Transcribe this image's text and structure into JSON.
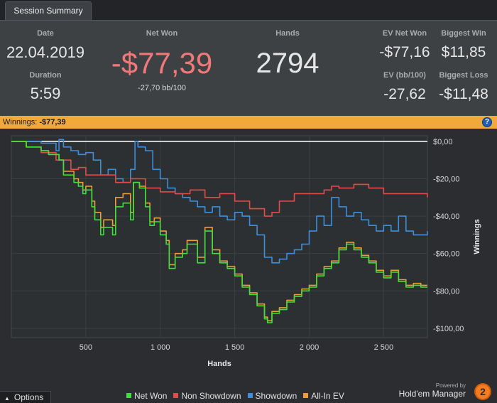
{
  "tab": {
    "label": "Session Summary"
  },
  "summary": {
    "date_label": "Date",
    "date": "22.04.2019",
    "duration_label": "Duration",
    "duration": "5:59",
    "net_won_label": "Net Won",
    "net_won": "-$77,39",
    "net_won_sub": "-27,70 bb/100",
    "hands_label": "Hands",
    "hands": "2794",
    "ev_net_won_label": "EV Net Won",
    "ev_net_won": "-$77,16",
    "ev_bb_label": "EV (bb/100)",
    "ev_bb": "-27,62",
    "biggest_win_label": "Biggest Win",
    "biggest_win": "$11,85",
    "biggest_loss_label": "Biggest Loss",
    "biggest_loss": "-$11,48"
  },
  "winnings_bar": {
    "label": "Winnings:",
    "value": "-$77,39",
    "help": "?"
  },
  "colors": {
    "net_won": "#3ee03a",
    "non_showdown": "#e34b4b",
    "showdown": "#3b8fdd",
    "allin_ev": "#f29a35",
    "accent_red": "#f07878"
  },
  "chart_data": {
    "type": "line",
    "xlabel": "Hands",
    "ylabel": "Winnings",
    "xlim": [
      0,
      2794
    ],
    "ylim": [
      -105,
      3
    ],
    "x_ticks": [
      500,
      1000,
      1500,
      2000,
      2500
    ],
    "x_tick_labels": [
      "500",
      "1 000",
      "1 500",
      "2 000",
      "2 500"
    ],
    "y_ticks": [
      0,
      -20,
      -40,
      -60,
      -80,
      -100
    ],
    "y_tick_labels": [
      "$0,00",
      "-$20,00",
      "-$40,00",
      "-$60,00",
      "-$80,00",
      "-$100,00"
    ],
    "grid": true,
    "legend_position": "bottom",
    "series": [
      {
        "name": "Net Won",
        "color": "#3ee03a",
        "x": [
          0,
          100,
          200,
          250,
          320,
          350,
          420,
          450,
          480,
          500,
          540,
          560,
          600,
          620,
          680,
          700,
          750,
          800,
          820,
          860,
          900,
          930,
          960,
          1000,
          1040,
          1060,
          1100,
          1150,
          1180,
          1250,
          1300,
          1350,
          1400,
          1450,
          1500,
          1550,
          1600,
          1650,
          1700,
          1720,
          1750,
          1800,
          1850,
          1900,
          1950,
          2000,
          2050,
          2100,
          2150,
          2200,
          2250,
          2300,
          2350,
          2400,
          2450,
          2500,
          2550,
          2600,
          2650,
          2700,
          2750,
          2794
        ],
        "y": [
          0,
          -3,
          -5,
          -7,
          -10,
          -18,
          -22,
          -24,
          -28,
          -26,
          -35,
          -42,
          -50,
          -46,
          -50,
          -35,
          -33,
          -42,
          -22,
          -25,
          -35,
          -45,
          -43,
          -50,
          -55,
          -68,
          -62,
          -60,
          -55,
          -65,
          -48,
          -60,
          -65,
          -68,
          -72,
          -78,
          -82,
          -88,
          -95,
          -97,
          -92,
          -90,
          -86,
          -83,
          -80,
          -78,
          -72,
          -68,
          -65,
          -58,
          -55,
          -58,
          -62,
          -65,
          -70,
          -73,
          -70,
          -75,
          -78,
          -77,
          -78,
          -78
        ]
      },
      {
        "name": "Non Showdown",
        "color": "#e34b4b",
        "x": [
          0,
          100,
          200,
          300,
          400,
          450,
          500,
          600,
          700,
          800,
          900,
          1000,
          1100,
          1200,
          1300,
          1400,
          1500,
          1600,
          1700,
          1750,
          1800,
          1900,
          2000,
          2100,
          2150,
          2200,
          2300,
          2400,
          2500,
          2600,
          2700,
          2794
        ],
        "y": [
          0,
          -3,
          -6,
          -10,
          -15,
          -14,
          -18,
          -18,
          -22,
          -20,
          -25,
          -27,
          -28,
          -26,
          -30,
          -28,
          -32,
          -36,
          -40,
          -38,
          -32,
          -28,
          -28,
          -26,
          -24,
          -25,
          -23,
          -25,
          -28,
          -28,
          -28,
          -30
        ]
      },
      {
        "name": "Showdown",
        "color": "#3b8fdd",
        "x": [
          0,
          100,
          200,
          300,
          320,
          350,
          400,
          450,
          500,
          550,
          600,
          650,
          700,
          750,
          800,
          830,
          850,
          900,
          950,
          1000,
          1050,
          1100,
          1150,
          1200,
          1250,
          1300,
          1350,
          1400,
          1450,
          1500,
          1550,
          1600,
          1650,
          1700,
          1750,
          1800,
          1850,
          1900,
          1950,
          2000,
          2050,
          2100,
          2150,
          2200,
          2250,
          2300,
          2350,
          2400,
          2450,
          2500,
          2550,
          2600,
          2650,
          2700,
          2750,
          2794
        ],
        "y": [
          0,
          0,
          -1,
          -5,
          1,
          -3,
          -5,
          -7,
          -6,
          -10,
          -18,
          -15,
          -20,
          -22,
          -15,
          0,
          -3,
          -5,
          -15,
          -20,
          -25,
          -28,
          -30,
          -32,
          -35,
          -38,
          -35,
          -40,
          -42,
          -38,
          -40,
          -45,
          -50,
          -62,
          -65,
          -63,
          -60,
          -58,
          -55,
          -48,
          -40,
          -45,
          -30,
          -35,
          -40,
          -38,
          -42,
          -45,
          -48,
          -45,
          -48,
          -40,
          -48,
          -50,
          -50,
          -48
        ]
      },
      {
        "name": "All-In EV",
        "color": "#f29a35",
        "x": [
          0,
          100,
          200,
          250,
          320,
          350,
          420,
          450,
          480,
          500,
          540,
          560,
          600,
          620,
          680,
          700,
          750,
          800,
          820,
          860,
          900,
          930,
          960,
          1000,
          1040,
          1060,
          1100,
          1150,
          1180,
          1250,
          1300,
          1350,
          1400,
          1450,
          1500,
          1550,
          1600,
          1650,
          1700,
          1720,
          1750,
          1800,
          1850,
          1900,
          1950,
          2000,
          2050,
          2100,
          2150,
          2200,
          2250,
          2300,
          2350,
          2400,
          2450,
          2500,
          2550,
          2600,
          2650,
          2700,
          2750,
          2794
        ],
        "y": [
          0,
          -3,
          -5,
          -7,
          -10,
          -16,
          -20,
          -22,
          -26,
          -24,
          -32,
          -38,
          -46,
          -42,
          -45,
          -30,
          -28,
          -38,
          -22,
          -24,
          -33,
          -43,
          -41,
          -48,
          -53,
          -66,
          -60,
          -58,
          -53,
          -62,
          -46,
          -58,
          -64,
          -67,
          -71,
          -77,
          -81,
          -87,
          -94,
          -96,
          -91,
          -89,
          -85,
          -82,
          -79,
          -77,
          -71,
          -67,
          -64,
          -57,
          -54,
          -57,
          -61,
          -64,
          -69,
          -72,
          -69,
          -74,
          -77,
          -76,
          -77,
          -77
        ]
      }
    ]
  },
  "footer": {
    "options_label": "Options",
    "brand_powered": "Powered by",
    "brand_name": "Hold'em Manager",
    "brand_mark": "2"
  }
}
